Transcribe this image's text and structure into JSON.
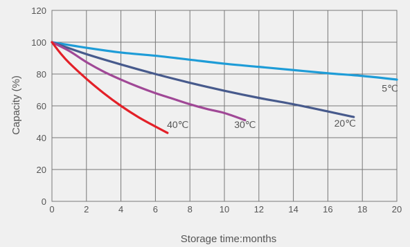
{
  "chart_data": {
    "type": "line",
    "xlabel": "Storage time:months",
    "ylabel": "Capacity (%)",
    "xlim": [
      0,
      20
    ],
    "ylim": [
      0,
      120
    ],
    "xticks": [
      0,
      2,
      4,
      6,
      8,
      10,
      12,
      14,
      16,
      18,
      20
    ],
    "yticks": [
      0,
      20,
      40,
      60,
      80,
      100,
      120
    ],
    "grid": true,
    "series": [
      {
        "name": "5℃",
        "color": "#1e9cd7",
        "x": [
          0,
          2,
          4,
          6,
          8,
          10,
          12,
          14,
          16,
          18,
          20
        ],
        "y": [
          100,
          96.5,
          93.5,
          91.5,
          89,
          86.5,
          84.5,
          82.5,
          80.5,
          78.8,
          76.5
        ]
      },
      {
        "name": "20℃",
        "color": "#475a8c",
        "x": [
          0,
          2,
          4,
          6,
          8,
          10,
          12,
          14,
          16,
          17.5
        ],
        "y": [
          100,
          92.5,
          86,
          80,
          74.5,
          69.5,
          65,
          61,
          56.5,
          53
        ]
      },
      {
        "name": "30℃",
        "color": "#a04896",
        "x": [
          0,
          1,
          2,
          3,
          4,
          5,
          6,
          7,
          8,
          9,
          10,
          11.2
        ],
        "y": [
          100,
          94.5,
          87.5,
          81.5,
          76.5,
          72,
          68,
          64.5,
          61,
          58,
          55.5,
          51
        ]
      },
      {
        "name": "40℃",
        "color": "#e32028",
        "x": [
          0,
          0.5,
          1,
          2,
          3,
          4,
          5,
          6,
          6.7
        ],
        "y": [
          100,
          93,
          87,
          77,
          68,
          60,
          53,
          47,
          43
        ]
      }
    ],
    "labels": [
      {
        "text": "5℃",
        "x": 19.6,
        "y": 69
      },
      {
        "text": "20℃",
        "x": 17.0,
        "y": 47
      },
      {
        "text": "30℃",
        "x": 11.2,
        "y": 46
      },
      {
        "text": "40℃",
        "x": 7.3,
        "y": 46
      }
    ]
  }
}
